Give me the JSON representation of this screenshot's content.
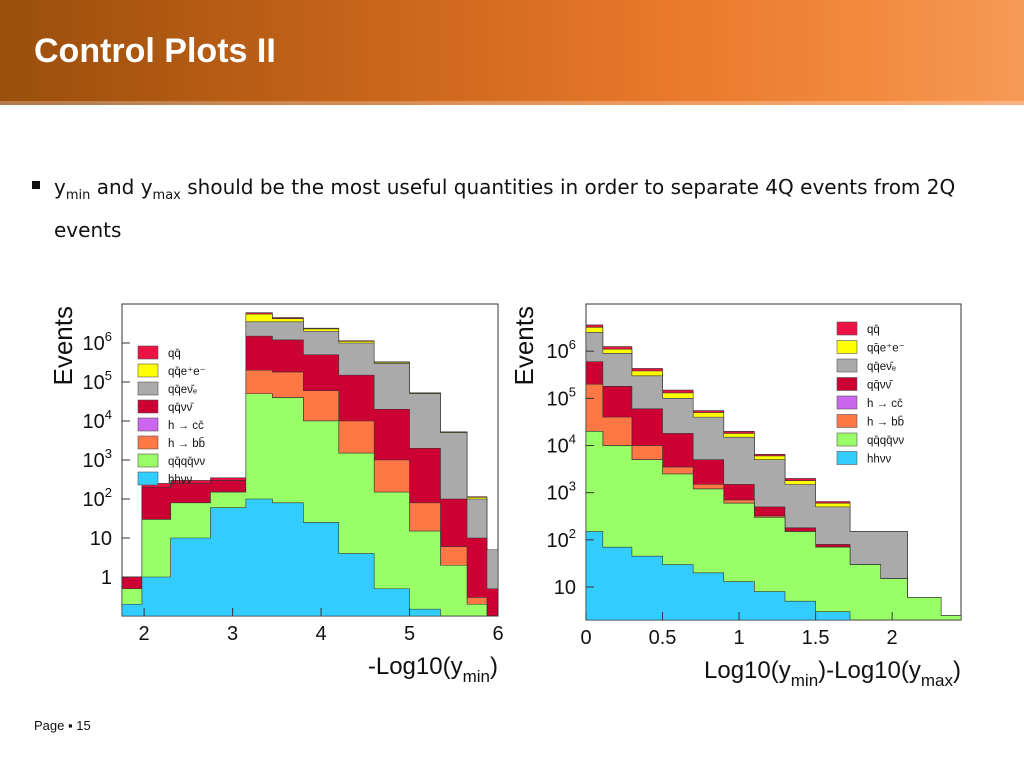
{
  "slide": {
    "title": "Control Plots II",
    "bullet": {
      "parts": [
        "y",
        "min",
        " and y",
        "max",
        " should be the most useful quantities in order to separate 4Q events from 2Q events"
      ]
    },
    "footer": {
      "page_label": "Page",
      "page_number": "15"
    },
    "colors": {
      "banner_dark": "#9a4f0c",
      "banner_light": "#f59a57"
    }
  },
  "legend": [
    {
      "label": "qq̄",
      "color": "#ee1144"
    },
    {
      "label": "qq̄e⁺e⁻",
      "color": "#ffff00"
    },
    {
      "label": "qq̄eν̄ₑ",
      "color": "#aaaaaa"
    },
    {
      "label": "qq̄νν̄",
      "color": "#cc0033"
    },
    {
      "label": "h → cc̄",
      "color": "#cc66ee"
    },
    {
      "label": "h → bb̄",
      "color": "#ff7744"
    },
    {
      "label": "qq̄qq̄νν",
      "color": "#99ff66"
    },
    {
      "label": "hhνν",
      "color": "#33ccff"
    }
  ],
  "chart_data": [
    {
      "type": "area",
      "xlabel": "-Log10(y",
      "xlabel_sub": "min",
      "xlabel_end": ")",
      "ylabel": "Events",
      "log_y": true,
      "xlim": [
        1.75,
        6.0
      ],
      "ylim": [
        0.1,
        10000000
      ],
      "x_ticks": [
        "2",
        "3",
        "4",
        "5",
        "6"
      ],
      "y_ticks": [
        {
          "base": "1"
        },
        {
          "base": "10"
        },
        {
          "base": "10",
          "exp": "2"
        },
        {
          "base": "10",
          "exp": "3"
        },
        {
          "base": "10",
          "exp": "4"
        },
        {
          "base": "10",
          "exp": "5"
        },
        {
          "base": "10",
          "exp": "6"
        }
      ],
      "legend_position": "top-left",
      "x": [
        1.85,
        2.1,
        2.5,
        3.0,
        3.3,
        3.6,
        4.0,
        4.4,
        4.8,
        5.2,
        5.5,
        5.8,
        5.95
      ],
      "series_cumulative": [
        {
          "name": "hhνν",
          "color": "#33ccff",
          "values": [
            0.2,
            1,
            10,
            60,
            100,
            80,
            25,
            4,
            0.5,
            0.15,
            0.1,
            0.1,
            0.1
          ]
        },
        {
          "name": "qq̄qq̄νν",
          "color": "#99ff66",
          "values": [
            0.5,
            30,
            80,
            150,
            50000,
            40000,
            10000,
            1500,
            150,
            15,
            2,
            0.2,
            0.1
          ]
        },
        {
          "name": "h → cc̄",
          "color": "#cc66ee",
          "values": [
            0.5,
            30,
            80,
            150,
            50000,
            40000,
            10000,
            1500,
            150,
            15,
            2,
            0.2,
            0.1
          ]
        },
        {
          "name": "h → bb̄",
          "color": "#ff7744",
          "values": [
            0.5,
            30,
            80,
            150,
            200000,
            180000,
            60000,
            10000,
            1000,
            80,
            6,
            0.3,
            0.1
          ]
        },
        {
          "name": "qq̄νν̄",
          "color": "#cc0033",
          "values": [
            1,
            200,
            250,
            300,
            1500000,
            1200000,
            500000,
            150000,
            20000,
            2000,
            100,
            10,
            0.5
          ]
        },
        {
          "name": "qq̄eν̄ₑ",
          "color": "#aaaaaa",
          "values": [
            1,
            200,
            250,
            300,
            3500000,
            3500000,
            2000000,
            1000000,
            300000,
            50000,
            5000,
            100,
            5
          ]
        },
        {
          "name": "qq̄e⁺e⁻",
          "color": "#ffff00",
          "values": [
            1,
            200,
            250,
            300,
            5500000,
            4200000,
            2300000,
            1100000,
            320000,
            52000,
            5200,
            110,
            5
          ]
        },
        {
          "name": "qq̄",
          "color": "#ee1144",
          "values": [
            1,
            250,
            300,
            350,
            6000000,
            4500000,
            2400000,
            1150000,
            330000,
            53000,
            5300,
            115,
            5
          ]
        }
      ]
    },
    {
      "type": "area",
      "xlabel": "Log10(y",
      "xlabel_sub": "min",
      "xlabel_mid": ")-Log10(y",
      "xlabel_sub2": "max",
      "xlabel_end": ")",
      "ylabel": "Events",
      "log_y": true,
      "xlim": [
        0.0,
        2.45
      ],
      "ylim": [
        2,
        10000000
      ],
      "x_ticks": [
        "0",
        "0.5",
        "1",
        "1.5",
        "2"
      ],
      "y_ticks": [
        {
          "base": "10"
        },
        {
          "base": "10",
          "exp": "2"
        },
        {
          "base": "10",
          "exp": "3"
        },
        {
          "base": "10",
          "exp": "4"
        },
        {
          "base": "10",
          "exp": "5"
        },
        {
          "base": "10",
          "exp": "6"
        }
      ],
      "legend_position": "top-right",
      "x": [
        0.02,
        0.2,
        0.4,
        0.6,
        0.8,
        1.0,
        1.2,
        1.4,
        1.6,
        1.85,
        2.0,
        2.2,
        2.44
      ],
      "series_cumulative": [
        {
          "name": "hhνν",
          "color": "#33ccff",
          "values": [
            150,
            70,
            45,
            30,
            20,
            13,
            8,
            5,
            3,
            2,
            2,
            2,
            2
          ]
        },
        {
          "name": "qq̄qq̄νν",
          "color": "#99ff66",
          "values": [
            20000,
            10000,
            5000,
            2500,
            1200,
            600,
            300,
            150,
            70,
            30,
            15,
            6,
            2.5
          ]
        },
        {
          "name": "h → cc̄",
          "color": "#cc66ee",
          "values": [
            20000,
            10000,
            5000,
            2500,
            1200,
            600,
            300,
            150,
            70,
            30,
            15,
            6,
            2.5
          ]
        },
        {
          "name": "h → bb̄",
          "color": "#ff7744",
          "values": [
            200000,
            40000,
            10000,
            3500,
            1500,
            700,
            320,
            150,
            70,
            30,
            15,
            6,
            2.5
          ]
        },
        {
          "name": "qq̄νν̄",
          "color": "#cc0033",
          "values": [
            600000,
            180000,
            60000,
            18000,
            5000,
            1500,
            500,
            180,
            80,
            30,
            15,
            6,
            2.5
          ]
        },
        {
          "name": "qq̄eν̄ₑ",
          "color": "#aaaaaa",
          "values": [
            2500000,
            900000,
            300000,
            100000,
            40000,
            15000,
            5000,
            1500,
            500,
            150,
            150,
            6,
            2.5
          ]
        },
        {
          "name": "qq̄e⁺e⁻",
          "color": "#ffff00",
          "values": [
            3200000,
            1100000,
            380000,
            130000,
            50000,
            18000,
            6000,
            1800,
            600,
            150,
            150,
            6,
            2.5
          ]
        },
        {
          "name": "qq̄",
          "color": "#ee1144",
          "values": [
            3600000,
            1250000,
            430000,
            150000,
            55000,
            20000,
            6500,
            2000,
            650,
            150,
            150,
            6,
            2.5
          ]
        }
      ]
    }
  ]
}
